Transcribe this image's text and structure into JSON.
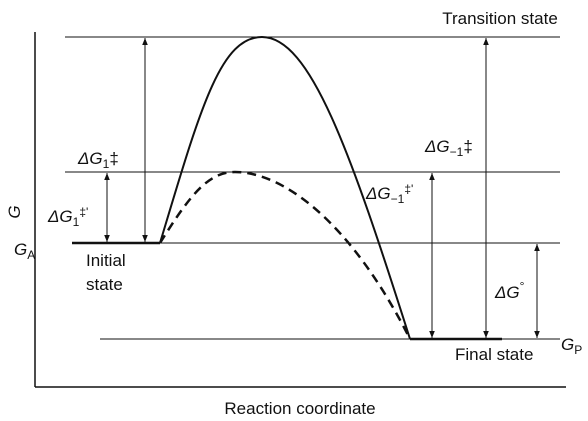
{
  "transition_label": "Transition state",
  "axis": {
    "y": "G",
    "x": "Reaction coordinate"
  },
  "levels": {
    "initial": {
      "symbol": "G",
      "sub": "A",
      "label": [
        "Initial",
        "state"
      ]
    },
    "final": {
      "symbol": "G",
      "sub": "P",
      "label": "Final state"
    }
  },
  "energies": [
    {
      "symbol": "ΔG",
      "sub": "1",
      "sup": "‡"
    },
    {
      "symbol": "ΔG",
      "sub": "1",
      "sup": "‡'"
    },
    {
      "symbol": "ΔG",
      "sub": "−1",
      "sup": "‡"
    },
    {
      "symbol": "ΔG",
      "sub": "−1",
      "sup": "‡'"
    },
    {
      "symbol": "ΔG",
      "sup": "°"
    }
  ]
}
